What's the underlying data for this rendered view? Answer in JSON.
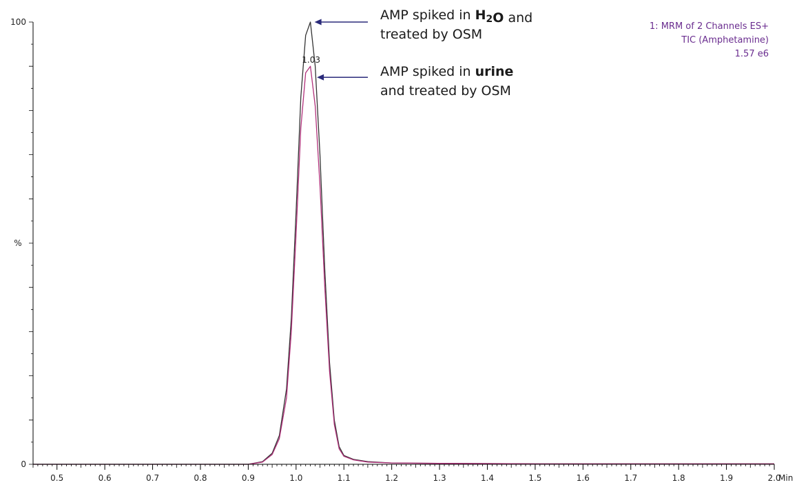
{
  "chart_data": {
    "type": "line",
    "xlabel": "Min",
    "ylabel": "%",
    "xlim": [
      0.45,
      2.0
    ],
    "ylim": [
      0,
      100
    ],
    "xticks": [
      0.5,
      0.6,
      0.7,
      0.8,
      0.9,
      1.0,
      1.1,
      1.2,
      1.3,
      1.4,
      1.5,
      1.6,
      1.7,
      1.8,
      1.9,
      2.0
    ],
    "xtick_labels": [
      "0.5",
      "0.6",
      "0.7",
      "0.8",
      "0.9",
      "1.0",
      "1.1",
      "1.2",
      "1.3",
      "1.4",
      "1.5",
      "1.6",
      "1.7",
      "1.8",
      "1.9",
      "2.0"
    ],
    "yticks": [
      0,
      100
    ],
    "ytick_labels": [
      "0",
      "100"
    ],
    "peak_label": "1.03",
    "info_lines": [
      "1: MRM of 2 Channels ES+",
      "TIC (Amphetamine)",
      "1.57 e6"
    ],
    "info_color": "#6a2d8f",
    "annotations": [
      {
        "lines": [
          {
            "parts": [
              {
                "text": "AMP spiked in ",
                "bold": false
              },
              {
                "text": "H",
                "bold": true
              },
              {
                "text": "2",
                "bold": true,
                "sub": true
              },
              {
                "text": "O",
                "bold": true
              },
              {
                "text": " and",
                "bold": false
              }
            ]
          },
          {
            "parts": [
              {
                "text": "treated by OSM",
                "bold": false
              }
            ]
          }
        ],
        "arrow_to": {
          "x": 1.03,
          "y": 100
        }
      },
      {
        "lines": [
          {
            "parts": [
              {
                "text": "AMP spiked in ",
                "bold": false
              },
              {
                "text": "urine",
                "bold": true
              }
            ]
          },
          {
            "parts": [
              {
                "text": "and treated by OSM",
                "bold": false
              }
            ]
          }
        ],
        "arrow_to": {
          "x": 1.035,
          "y": 87.5
        }
      }
    ],
    "arrow_color": "#2a2a7a",
    "series": [
      {
        "color": "#333333",
        "x": [
          0.45,
          0.9,
          0.93,
          0.95,
          0.965,
          0.98,
          0.99,
          1.0,
          1.01,
          1.02,
          1.03,
          1.04,
          1.05,
          1.06,
          1.07,
          1.08,
          1.09,
          1.1,
          1.12,
          1.15,
          1.2,
          1.3,
          1.5,
          2.0
        ],
        "y": [
          0,
          0,
          0.6,
          2.5,
          6.5,
          17,
          33,
          57,
          83,
          97,
          100,
          90,
          70,
          44,
          23,
          10,
          4,
          2,
          1.1,
          0.6,
          0.3,
          0.2,
          0.1,
          0.1
        ]
      },
      {
        "color": "#b0307a",
        "x": [
          0.45,
          0.9,
          0.93,
          0.95,
          0.965,
          0.98,
          0.99,
          1.0,
          1.01,
          1.02,
          1.03,
          1.04,
          1.05,
          1.06,
          1.07,
          1.08,
          1.09,
          1.1,
          1.12,
          1.15,
          1.2,
          1.3,
          1.5,
          2.0
        ],
        "y": [
          0,
          0,
          0.5,
          2.2,
          5.8,
          15,
          30,
          52,
          76,
          88.5,
          90,
          81,
          63,
          40,
          21,
          9,
          3.5,
          1.8,
          1.0,
          0.5,
          0.3,
          0.2,
          0.1,
          0.1
        ]
      }
    ]
  }
}
